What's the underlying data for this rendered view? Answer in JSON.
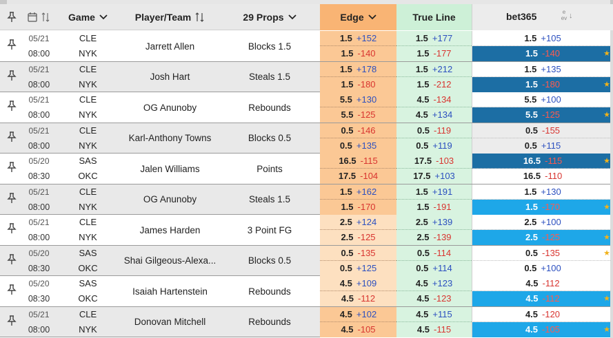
{
  "header": {
    "pin_icon": "pin-icon",
    "calendar_icon": "calendar-icon",
    "sort_icon": "sort-arrows-icon",
    "game_label": "Game",
    "player_label": "Player/Team",
    "props_label": "29 Props",
    "edge_label": "Edge",
    "true_line_label": "True Line",
    "book_label": "bet365",
    "ev_label_top": "e",
    "ev_label_bottom": "ev"
  },
  "colors": {
    "edge_bg": "#f9b474",
    "true_bg": "#cdf0d7",
    "book_dark": "#1c6ea4",
    "book_light": "#1ea7e8",
    "positive": "#2b4fbf",
    "negative": "#d8342f",
    "star": "#f1b21a"
  },
  "rows": [
    {
      "date": "05/21",
      "time": "08:00",
      "away": "CLE",
      "home": "NYK",
      "player": "Jarrett Allen",
      "prop": "Blocks 1.5",
      "edge": [
        {
          "line": "1.5",
          "odds": "+152"
        },
        {
          "line": "1.5",
          "odds": "-140"
        }
      ],
      "true": [
        {
          "line": "1.5",
          "odds": "+177"
        },
        {
          "line": "1.5",
          "odds": "-177"
        }
      ],
      "book": [
        {
          "line": "1.5",
          "odds": "+105",
          "hl": ""
        },
        {
          "line": "1.5",
          "odds": "-140",
          "hl": "dark",
          "star": true
        }
      ]
    },
    {
      "date": "05/21",
      "time": "08:00",
      "away": "CLE",
      "home": "NYK",
      "player": "Josh Hart",
      "prop": "Steals 1.5",
      "edge": [
        {
          "line": "1.5",
          "odds": "+178"
        },
        {
          "line": "1.5",
          "odds": "-180"
        }
      ],
      "true": [
        {
          "line": "1.5",
          "odds": "+212"
        },
        {
          "line": "1.5",
          "odds": "-212"
        }
      ],
      "book": [
        {
          "line": "1.5",
          "odds": "+135",
          "hl": ""
        },
        {
          "line": "1.5",
          "odds": "-180",
          "hl": "dark",
          "star": true
        }
      ]
    },
    {
      "date": "05/21",
      "time": "08:00",
      "away": "CLE",
      "home": "NYK",
      "player": "OG Anunoby",
      "prop": "Rebounds",
      "edge": [
        {
          "line": "5.5",
          "odds": "+130"
        },
        {
          "line": "5.5",
          "odds": "-125"
        }
      ],
      "true": [
        {
          "line": "4.5",
          "odds": "-134"
        },
        {
          "line": "4.5",
          "odds": "+134"
        }
      ],
      "book": [
        {
          "line": "5.5",
          "odds": "+100",
          "hl": ""
        },
        {
          "line": "5.5",
          "odds": "-125",
          "hl": "dark",
          "star": true
        }
      ]
    },
    {
      "date": "05/21",
      "time": "08:00",
      "away": "CLE",
      "home": "NYK",
      "player": "Karl-Anthony Towns",
      "prop": "Blocks 0.5",
      "edge": [
        {
          "line": "0.5",
          "odds": "-146"
        },
        {
          "line": "0.5",
          "odds": "+135"
        }
      ],
      "true": [
        {
          "line": "0.5",
          "odds": "-119"
        },
        {
          "line": "0.5",
          "odds": "+119"
        }
      ],
      "book": [
        {
          "line": "0.5",
          "odds": "-155",
          "hl": "grey"
        },
        {
          "line": "0.5",
          "odds": "+115",
          "hl": "grey"
        }
      ]
    },
    {
      "date": "05/20",
      "time": "08:30",
      "away": "SAS",
      "home": "OKC",
      "player": "Jalen Williams",
      "prop": "Points",
      "edge": [
        {
          "line": "16.5",
          "odds": "-115"
        },
        {
          "line": "17.5",
          "odds": "-104"
        }
      ],
      "true": [
        {
          "line": "17.5",
          "odds": "-103"
        },
        {
          "line": "17.5",
          "odds": "+103"
        }
      ],
      "book": [
        {
          "line": "16.5",
          "odds": "-115",
          "hl": "dark",
          "star": true
        },
        {
          "line": "16.5",
          "odds": "-110",
          "hl": ""
        }
      ]
    },
    {
      "date": "05/21",
      "time": "08:00",
      "away": "CLE",
      "home": "NYK",
      "player": "OG Anunoby",
      "prop": "Steals 1.5",
      "edge": [
        {
          "line": "1.5",
          "odds": "+162"
        },
        {
          "line": "1.5",
          "odds": "-170"
        }
      ],
      "true": [
        {
          "line": "1.5",
          "odds": "+191"
        },
        {
          "line": "1.5",
          "odds": "-191"
        }
      ],
      "book": [
        {
          "line": "1.5",
          "odds": "+130",
          "hl": ""
        },
        {
          "line": "1.5",
          "odds": "-170",
          "hl": "light-blue",
          "star": true
        }
      ]
    },
    {
      "date": "05/21",
      "time": "08:00",
      "away": "CLE",
      "home": "NYK",
      "player": "James Harden",
      "prop": "3 Point FG",
      "edge": [
        {
          "line": "2.5",
          "odds": "+124"
        },
        {
          "line": "2.5",
          "odds": "-125"
        }
      ],
      "true": [
        {
          "line": "2.5",
          "odds": "+139"
        },
        {
          "line": "2.5",
          "odds": "-139"
        }
      ],
      "book": [
        {
          "line": "2.5",
          "odds": "+100",
          "hl": ""
        },
        {
          "line": "2.5",
          "odds": "-125",
          "hl": "light-blue",
          "star": true
        }
      ]
    },
    {
      "date": "05/20",
      "time": "08:30",
      "away": "SAS",
      "home": "OKC",
      "player": "Shai Gilgeous-Alexa...",
      "prop": "Blocks 0.5",
      "edge": [
        {
          "line": "0.5",
          "odds": "-135"
        },
        {
          "line": "0.5",
          "odds": "+125"
        }
      ],
      "true": [
        {
          "line": "0.5",
          "odds": "-114"
        },
        {
          "line": "0.5",
          "odds": "+114"
        }
      ],
      "book": [
        {
          "line": "0.5",
          "odds": "-135",
          "hl": "",
          "star": true
        },
        {
          "line": "0.5",
          "odds": "+100",
          "hl": ""
        }
      ]
    },
    {
      "date": "05/20",
      "time": "08:30",
      "away": "SAS",
      "home": "OKC",
      "player": "Isaiah Hartenstein",
      "prop": "Rebounds",
      "edge": [
        {
          "line": "4.5",
          "odds": "+109"
        },
        {
          "line": "4.5",
          "odds": "-112"
        }
      ],
      "true": [
        {
          "line": "4.5",
          "odds": "+123"
        },
        {
          "line": "4.5",
          "odds": "-123"
        }
      ],
      "book": [
        {
          "line": "4.5",
          "odds": "-112",
          "hl": ""
        },
        {
          "line": "4.5",
          "odds": "-112",
          "hl": "light-blue",
          "star": true
        }
      ]
    },
    {
      "date": "05/21",
      "time": "08:00",
      "away": "CLE",
      "home": "NYK",
      "player": "Donovan Mitchell",
      "prop": "Rebounds",
      "edge": [
        {
          "line": "4.5",
          "odds": "+102"
        },
        {
          "line": "4.5",
          "odds": "-105"
        }
      ],
      "true": [
        {
          "line": "4.5",
          "odds": "+115"
        },
        {
          "line": "4.5",
          "odds": "-115"
        }
      ],
      "book": [
        {
          "line": "4.5",
          "odds": "-120",
          "hl": ""
        },
        {
          "line": "4.5",
          "odds": "-105",
          "hl": "light-blue",
          "star": true
        }
      ]
    }
  ]
}
